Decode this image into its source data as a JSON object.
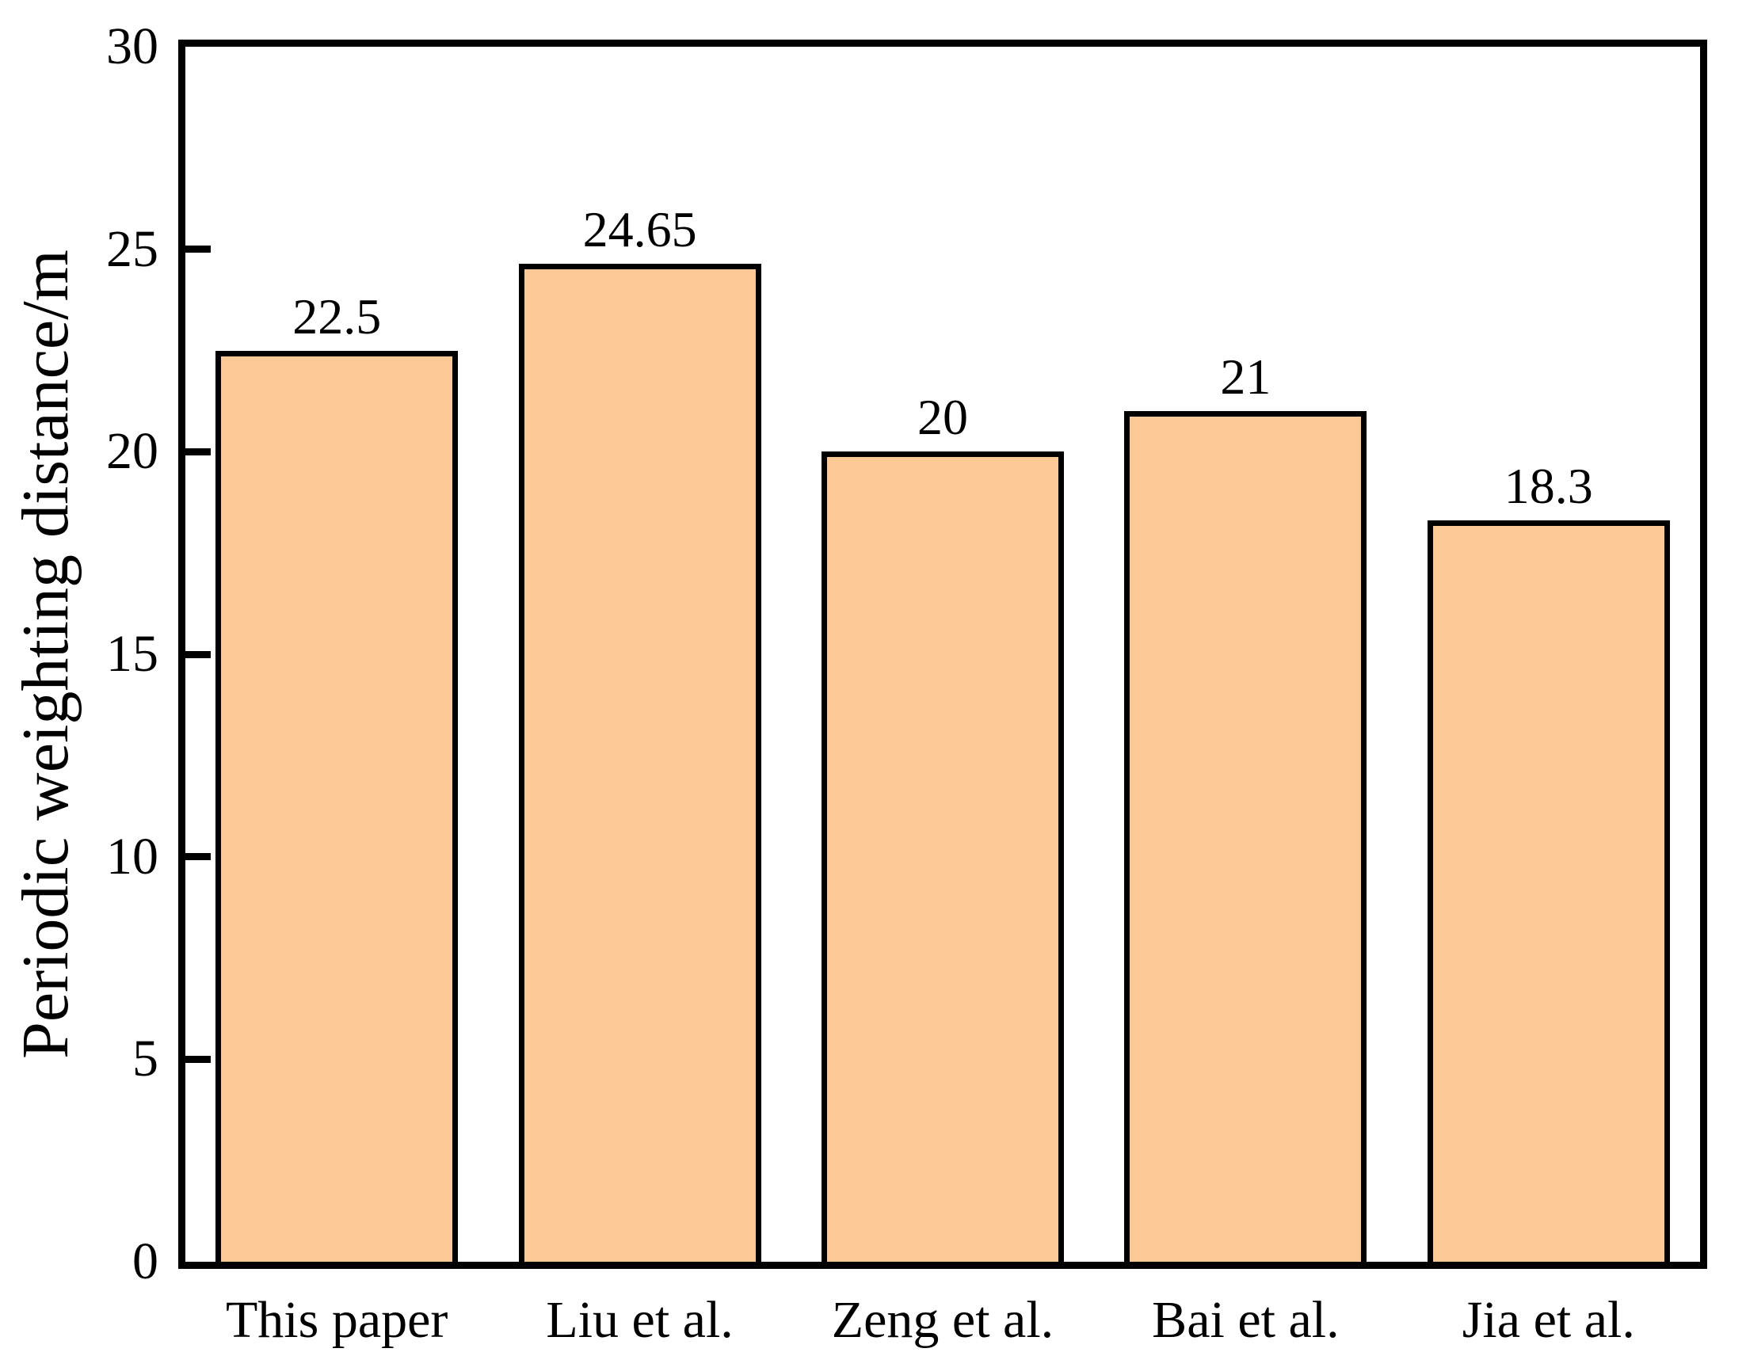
{
  "chart_data": {
    "type": "bar",
    "title": "",
    "categories": [
      "This paper",
      "Liu et al.",
      "Zeng et al.",
      "Bai et al.",
      "Jia et al."
    ],
    "values": [
      22.5,
      24.65,
      20,
      21,
      18.3
    ],
    "value_labels": [
      "22.5",
      "24.65",
      "20",
      "21",
      "18.3"
    ],
    "xlabel": "",
    "ylabel": "Periodic weighting distance/m",
    "ylim": [
      0,
      30
    ],
    "yticks": [
      0,
      5,
      10,
      15,
      20,
      25,
      30
    ],
    "grid": false,
    "legend": "none",
    "bar_fill_color": "#FBC896",
    "bar_border_color": "#000000",
    "axis_color": "#000000",
    "background_color": "#FFFFFF",
    "bar_width_fraction": 0.8,
    "tick_direction": "in"
  }
}
